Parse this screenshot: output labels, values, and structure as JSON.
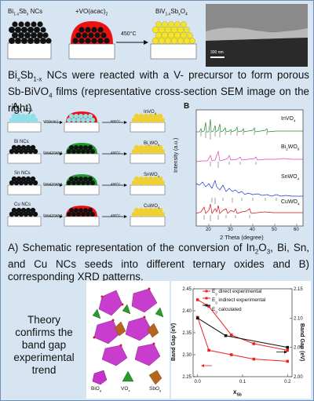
{
  "top_scheme": {
    "step1": "Bi",
    "step1_sub": "1-x",
    "step1_b": "Sb",
    "step1_sub2": "x",
    "step1_suffix": " NCs",
    "step2": "+VO(acac)",
    "step2_sub": "2",
    "step3": "BiV",
    "step3_sub": "1-x",
    "step3_b": "Sb",
    "step3_sub2": "x",
    "step3_c": "O",
    "step3_sub3": "4",
    "temp": "450°C",
    "sem_scale": "300 nm"
  },
  "caption1": {
    "a": "Bi",
    "a_sub": "x",
    "b": "Sb",
    "b_sub": "1-x",
    "c": " NCs were reacted with a V- precursor to form porous Sb-BiVO",
    "c_sub": "4",
    "d": " films  (representative cross-section SEM image on the right)"
  },
  "panel_a": {
    "label": "A",
    "rows": [
      {
        "name": "In",
        "sub1": "2",
        "name2": "O",
        "sub2": "3",
        "suffix": " NCs",
        "reagent": "VO(acac)",
        "temp": "800°C",
        "product": "InVO",
        "psub": "4"
      },
      {
        "name": "Bi NCs",
        "reagent": "(NH4)2WS4",
        "temp": "450°C",
        "product": "Bi",
        "psub": "2",
        "product2": "WO",
        "psub2": "6"
      },
      {
        "name": "Sn NCs",
        "reagent": "(NH4)2WS4",
        "temp": "450°C",
        "product": "SnWO",
        "psub": "4"
      },
      {
        "name": "Cu NCs",
        "reagent": "(NH4)2WS4",
        "temp": "450°C",
        "product": "CuWO",
        "psub": "4"
      }
    ]
  },
  "panel_b": {
    "label": "B",
    "ylabel": "Intensity (a.u.)",
    "xlabel": "2 Theta (degree)",
    "xticks": [
      "20",
      "30",
      "40",
      "50",
      "60"
    ],
    "labels": [
      "InVO",
      "Bi",
      "SnWO",
      "CuWO"
    ]
  },
  "caption2": {
    "a": "A) Schematic representation of the conversion of In",
    "a_sub1": "2",
    "a2": "O",
    "a_sub2": "3",
    "b": ", Bi, Sn, and Cu NCs seeds into different ternary oxides and  B) corresponding XRD patterns."
  },
  "theory": {
    "line1": "Theory",
    "line2": "confirms the",
    "line3": "band gap",
    "line4": "experimental",
    "line5": "trend"
  },
  "crystal_labels": {
    "a": "BiO",
    "a_sub": "8",
    "b": "VO",
    "b_sub": "4",
    "c": "SbO",
    "c_sub": "8"
  },
  "band_chart": {
    "ylabel_left": "Band Gap (eV)",
    "ylabel_right": "Band Gap (eV)",
    "xlabel": "x",
    "xlabel_sub": "Sb",
    "left_ticks": [
      "2.45",
      "2.40",
      "2.35",
      "2.30",
      "2.25"
    ],
    "right_ticks": [
      "2.15",
      "2.10",
      "2.05",
      "2.00"
    ],
    "x_ticks": [
      "0.0",
      "0.1",
      "0.2"
    ],
    "legend": [
      {
        "label": "E",
        "sub": "g",
        "label2": " direct experimental",
        "color": "#ee2222"
      },
      {
        "label": "E",
        "sub": "g",
        "label2": " indirect experimental",
        "color": "#ee2222"
      },
      {
        "label": "E",
        "sub": "g",
        "label2": " calculated",
        "color": "#111111"
      }
    ]
  },
  "chart_data": {
    "type": "line",
    "xlabel": "xSb",
    "ylabel": "Band Gap (eV)",
    "y2label": "Band Gap (eV)",
    "xlim": [
      -0.01,
      0.21
    ],
    "ylim": [
      2.25,
      2.45
    ],
    "y2lim": [
      2.0,
      2.15
    ],
    "series": [
      {
        "name": "Eg direct experimental",
        "axis": "left",
        "x": [
          0.0,
          0.025,
          0.075,
          0.125,
          0.2
        ],
        "values": [
          2.425,
          2.41,
          2.345,
          2.325,
          2.31
        ]
      },
      {
        "name": "Eg indirect experimental",
        "axis": "left",
        "x": [
          0.0,
          0.025,
          0.075,
          0.125,
          0.2
        ],
        "values": [
          2.385,
          2.31,
          2.3,
          2.29,
          2.285
        ]
      },
      {
        "name": "Eg calculated",
        "axis": "right",
        "x": [
          0.0,
          0.0625,
          0.2
        ],
        "values": [
          2.1,
          2.07,
          2.05
        ]
      }
    ]
  }
}
